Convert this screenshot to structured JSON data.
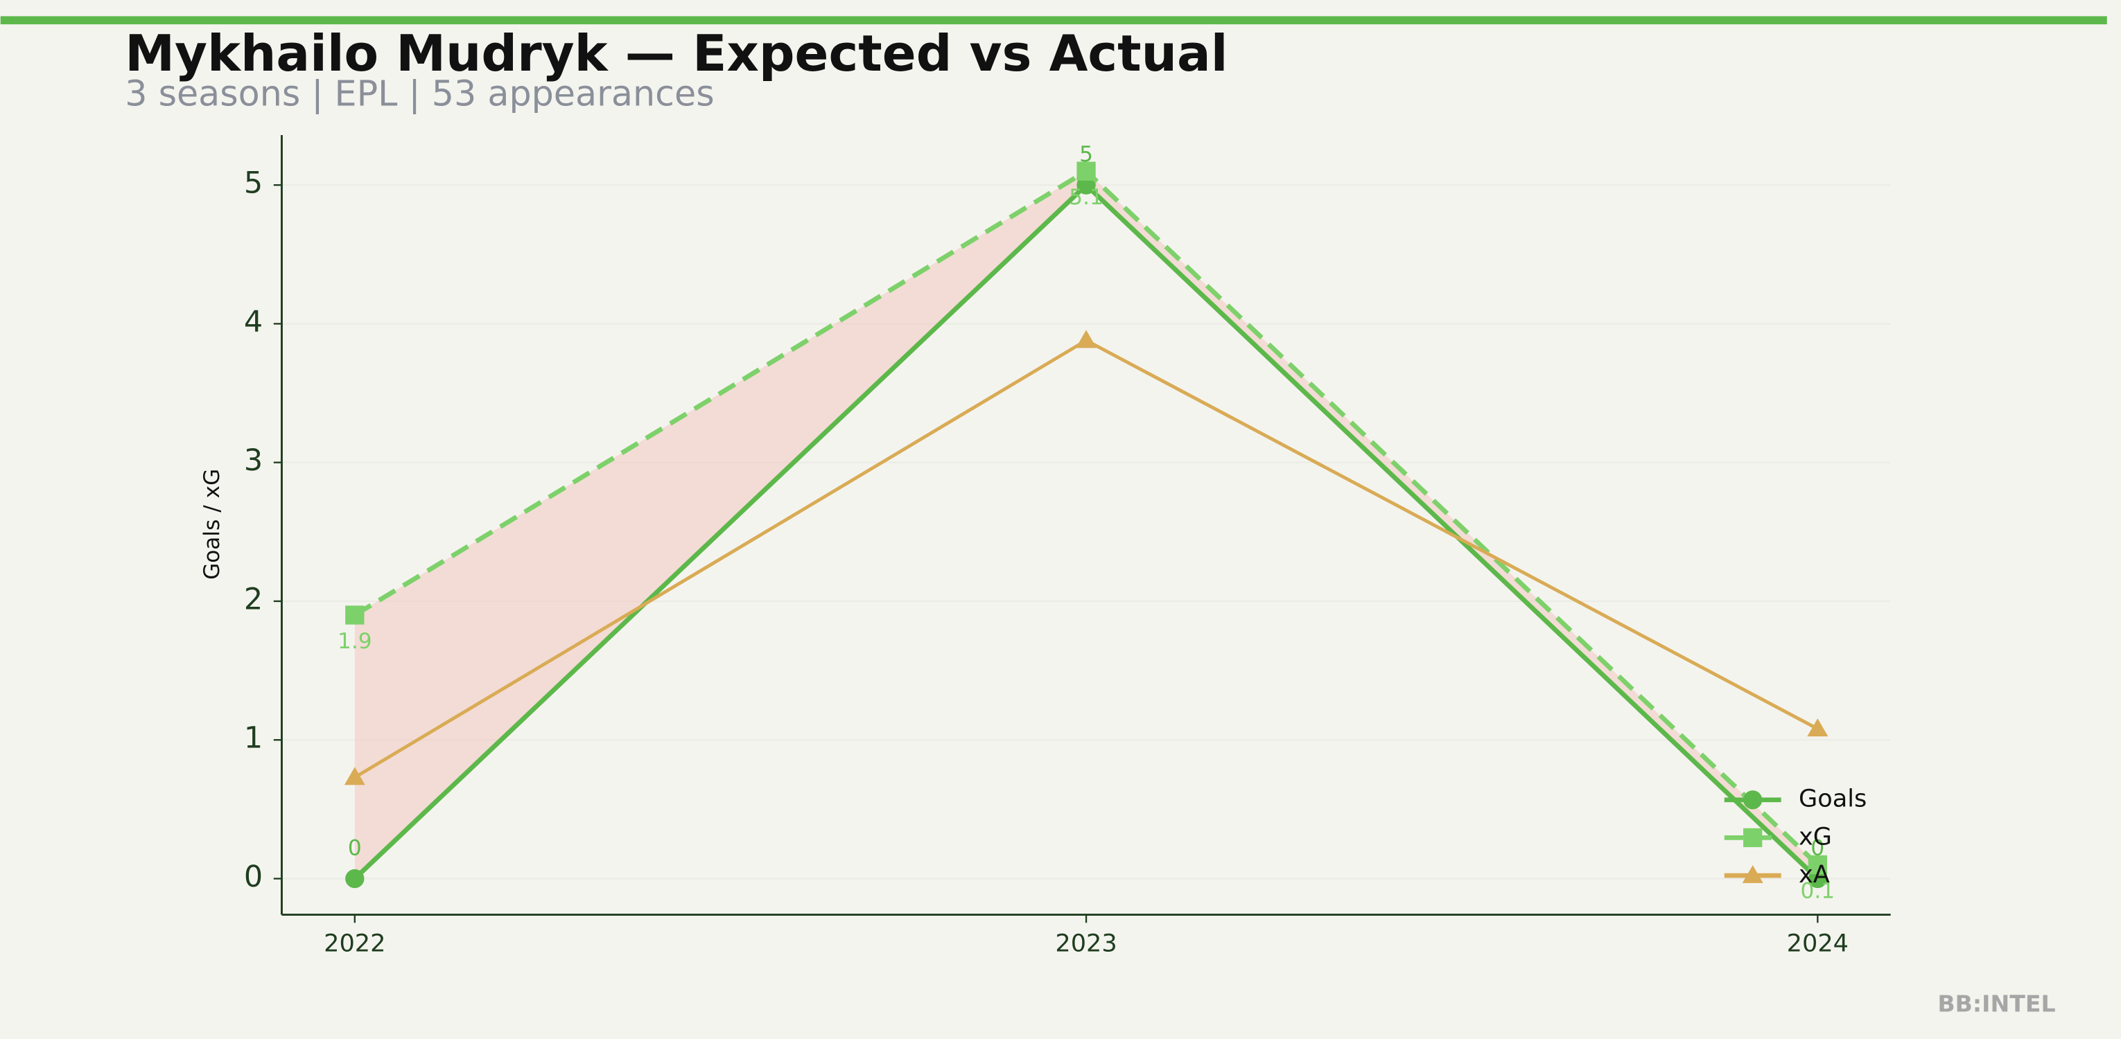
{
  "chart_data": {
    "type": "line",
    "title": "Mykhailo Mudryk — Expected vs Actual",
    "subtitle": "3 seasons | EPL | 53 appearances",
    "y_label": "Goals / xG",
    "categories": [
      "2022",
      "2023",
      "2024"
    ],
    "series": [
      {
        "name": "Goals",
        "color": "#5cb84a",
        "marker": "circle",
        "dash": false,
        "labels": true,
        "values": [
          0,
          5,
          0
        ]
      },
      {
        "name": "xG",
        "color": "#7dd16a",
        "marker": "square",
        "dash": true,
        "labels": true,
        "values": [
          1.9,
          5.1,
          0.1
        ]
      },
      {
        "name": "xA",
        "color": "#d9ab55",
        "marker": "triangle",
        "dash": false,
        "labels": false,
        "values": [
          0.73,
          3.88,
          1.08
        ]
      }
    ],
    "fill_between": {
      "series": [
        0,
        1
      ],
      "color": "#f2c4bc"
    },
    "ylim": [
      -0.26,
      5.36
    ],
    "yticks": [
      0,
      1,
      2,
      3,
      4,
      5
    ],
    "grid": true,
    "legend": "lower right"
  },
  "brand": "BB:INTEL"
}
